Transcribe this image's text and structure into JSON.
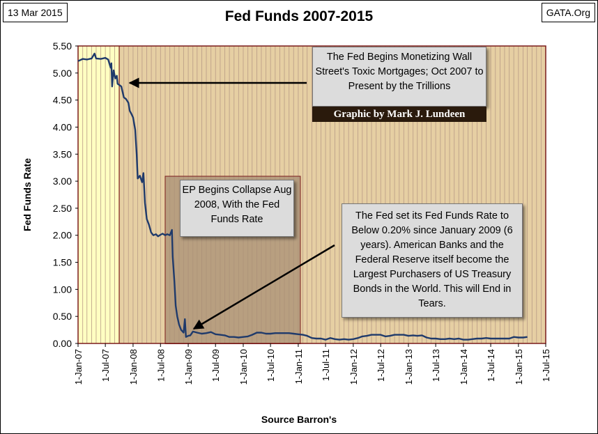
{
  "header": {
    "date": "13 Mar 2015",
    "source_site": "GATA.Org"
  },
  "annotations": {
    "monetizing": "The Fed Begins Monetizing Wall Street's Toxic Mortgages;  Oct 2007 to Present by the Trillions",
    "credit": "Graphic by Mark J. Lundeen",
    "ep_collapse": "EP Begins Collapse Aug 2008,  With the Fed Funds Rate",
    "below_020": "The Fed set its Fed Funds Rate to Below 0.20% since January 2009 (6 years).  American Banks and the Federal Reserve itself become the Largest Purchasers of US Treasury Bonds in the World.  This will End in Tears."
  },
  "colors": {
    "plot_background": "#e6cfa3",
    "pre_qe_background": "#ffffc2",
    "highlight_box": "#a88f74",
    "line": "#1f3a6b",
    "border": "#7a1a1a"
  },
  "chart_data": {
    "type": "line",
    "title": "Fed Funds 2007-2015",
    "xlabel": "Source Barron's",
    "ylabel": "Fed Funds Rate",
    "ylim": [
      0,
      5.5
    ],
    "y_ticks": [
      "0.00",
      "0.50",
      "1.00",
      "1.50",
      "2.00",
      "2.50",
      "3.00",
      "3.50",
      "4.00",
      "4.50",
      "5.00",
      "5.50"
    ],
    "x_ticks": [
      "1-Jan-07",
      "1-Jul-07",
      "1-Jan-08",
      "1-Jul-08",
      "1-Jan-09",
      "1-Jul-09",
      "1-Jan-10",
      "1-Jul-10",
      "1-Jan-11",
      "1-Jul-11",
      "1-Jan-12",
      "1-Jul-12",
      "1-Jan-13",
      "1-Jul-13",
      "1-Jan-14",
      "1-Jul-14",
      "1-Jan-15",
      "1-Jul-15"
    ],
    "xlim": [
      "2007-01-01",
      "2015-07-01"
    ],
    "grid": "vertical lines monthly",
    "shaded_regions": [
      {
        "from": "2007-01-01",
        "to": "2007-10-01"
      },
      {
        "from": "2008-08-01",
        "to": "2011-01-15"
      }
    ],
    "series": [
      {
        "points": [
          [
            "2007-01-01",
            5.22
          ],
          [
            "2007-02-01",
            5.26
          ],
          [
            "2007-03-01",
            5.25
          ],
          [
            "2007-04-01",
            5.27
          ],
          [
            "2007-04-20",
            5.36
          ],
          [
            "2007-05-01",
            5.27
          ],
          [
            "2007-06-01",
            5.26
          ],
          [
            "2007-07-01",
            5.28
          ],
          [
            "2007-07-20",
            5.25
          ],
          [
            "2007-08-05",
            5.1
          ],
          [
            "2007-08-10",
            5.18
          ],
          [
            "2007-08-15",
            4.75
          ],
          [
            "2007-08-25",
            5.05
          ],
          [
            "2007-09-05",
            4.9
          ],
          [
            "2007-09-15",
            4.95
          ],
          [
            "2007-09-20",
            4.8
          ],
          [
            "2007-10-01",
            4.78
          ],
          [
            "2007-10-15",
            4.75
          ],
          [
            "2007-11-01",
            4.55
          ],
          [
            "2007-11-15",
            4.52
          ],
          [
            "2007-12-01",
            4.45
          ],
          [
            "2007-12-10",
            4.3
          ],
          [
            "2007-12-20",
            4.25
          ],
          [
            "2008-01-01",
            4.18
          ],
          [
            "2008-01-15",
            3.95
          ],
          [
            "2008-01-25",
            3.5
          ],
          [
            "2008-02-01",
            3.05
          ],
          [
            "2008-02-15",
            3.1
          ],
          [
            "2008-03-01",
            2.98
          ],
          [
            "2008-03-10",
            3.15
          ],
          [
            "2008-03-20",
            2.6
          ],
          [
            "2008-04-01",
            2.3
          ],
          [
            "2008-04-15",
            2.2
          ],
          [
            "2008-04-30",
            2.05
          ],
          [
            "2008-05-15",
            2.0
          ],
          [
            "2008-06-01",
            2.02
          ],
          [
            "2008-06-15",
            1.98
          ],
          [
            "2008-07-01",
            2.01
          ],
          [
            "2008-07-15",
            2.03
          ],
          [
            "2008-08-01",
            2.0
          ],
          [
            "2008-08-15",
            2.02
          ],
          [
            "2008-09-01",
            2.0
          ],
          [
            "2008-09-15",
            2.1
          ],
          [
            "2008-09-20",
            1.6
          ],
          [
            "2008-10-01",
            1.15
          ],
          [
            "2008-10-10",
            0.7
          ],
          [
            "2008-10-20",
            0.5
          ],
          [
            "2008-11-01",
            0.35
          ],
          [
            "2008-11-15",
            0.25
          ],
          [
            "2008-12-01",
            0.2
          ],
          [
            "2008-12-10",
            0.45
          ],
          [
            "2008-12-17",
            0.12
          ],
          [
            "2009-01-01",
            0.14
          ],
          [
            "2009-01-15",
            0.15
          ],
          [
            "2009-02-01",
            0.22
          ],
          [
            "2009-03-01",
            0.2
          ],
          [
            "2009-04-01",
            0.18
          ],
          [
            "2009-05-01",
            0.19
          ],
          [
            "2009-06-01",
            0.21
          ],
          [
            "2009-07-01",
            0.17
          ],
          [
            "2009-08-01",
            0.16
          ],
          [
            "2009-09-01",
            0.15
          ],
          [
            "2009-10-01",
            0.12
          ],
          [
            "2009-11-01",
            0.12
          ],
          [
            "2009-12-01",
            0.11
          ],
          [
            "2010-01-01",
            0.12
          ],
          [
            "2010-02-01",
            0.13
          ],
          [
            "2010-03-01",
            0.16
          ],
          [
            "2010-04-01",
            0.2
          ],
          [
            "2010-05-01",
            0.2
          ],
          [
            "2010-06-01",
            0.18
          ],
          [
            "2010-07-01",
            0.18
          ],
          [
            "2010-08-01",
            0.19
          ],
          [
            "2010-09-01",
            0.19
          ],
          [
            "2010-10-01",
            0.19
          ],
          [
            "2010-11-01",
            0.19
          ],
          [
            "2010-12-01",
            0.18
          ],
          [
            "2011-01-01",
            0.17
          ],
          [
            "2011-02-01",
            0.16
          ],
          [
            "2011-03-01",
            0.14
          ],
          [
            "2011-04-01",
            0.1
          ],
          [
            "2011-05-01",
            0.09
          ],
          [
            "2011-06-01",
            0.09
          ],
          [
            "2011-07-01",
            0.07
          ],
          [
            "2011-08-01",
            0.1
          ],
          [
            "2011-09-01",
            0.08
          ],
          [
            "2011-10-01",
            0.07
          ],
          [
            "2011-11-01",
            0.08
          ],
          [
            "2011-12-01",
            0.07
          ],
          [
            "2012-01-01",
            0.08
          ],
          [
            "2012-02-01",
            0.1
          ],
          [
            "2012-03-01",
            0.13
          ],
          [
            "2012-04-01",
            0.14
          ],
          [
            "2012-05-01",
            0.16
          ],
          [
            "2012-06-01",
            0.16
          ],
          [
            "2012-07-01",
            0.16
          ],
          [
            "2012-08-01",
            0.13
          ],
          [
            "2012-09-01",
            0.14
          ],
          [
            "2012-10-01",
            0.16
          ],
          [
            "2012-11-01",
            0.16
          ],
          [
            "2012-12-01",
            0.16
          ],
          [
            "2013-01-01",
            0.14
          ],
          [
            "2013-02-01",
            0.15
          ],
          [
            "2013-03-01",
            0.14
          ],
          [
            "2013-04-01",
            0.15
          ],
          [
            "2013-05-01",
            0.11
          ],
          [
            "2013-06-01",
            0.09
          ],
          [
            "2013-07-01",
            0.09
          ],
          [
            "2013-08-01",
            0.08
          ],
          [
            "2013-09-01",
            0.08
          ],
          [
            "2013-10-01",
            0.09
          ],
          [
            "2013-11-01",
            0.08
          ],
          [
            "2013-12-01",
            0.09
          ],
          [
            "2014-01-01",
            0.07
          ],
          [
            "2014-02-01",
            0.07
          ],
          [
            "2014-03-01",
            0.08
          ],
          [
            "2014-04-01",
            0.09
          ],
          [
            "2014-05-01",
            0.09
          ],
          [
            "2014-06-01",
            0.1
          ],
          [
            "2014-07-01",
            0.09
          ],
          [
            "2014-08-01",
            0.09
          ],
          [
            "2014-09-01",
            0.09
          ],
          [
            "2014-10-01",
            0.09
          ],
          [
            "2014-11-01",
            0.09
          ],
          [
            "2014-12-01",
            0.12
          ],
          [
            "2015-01-01",
            0.11
          ],
          [
            "2015-02-01",
            0.11
          ],
          [
            "2015-03-01",
            0.12
          ]
        ]
      }
    ]
  }
}
